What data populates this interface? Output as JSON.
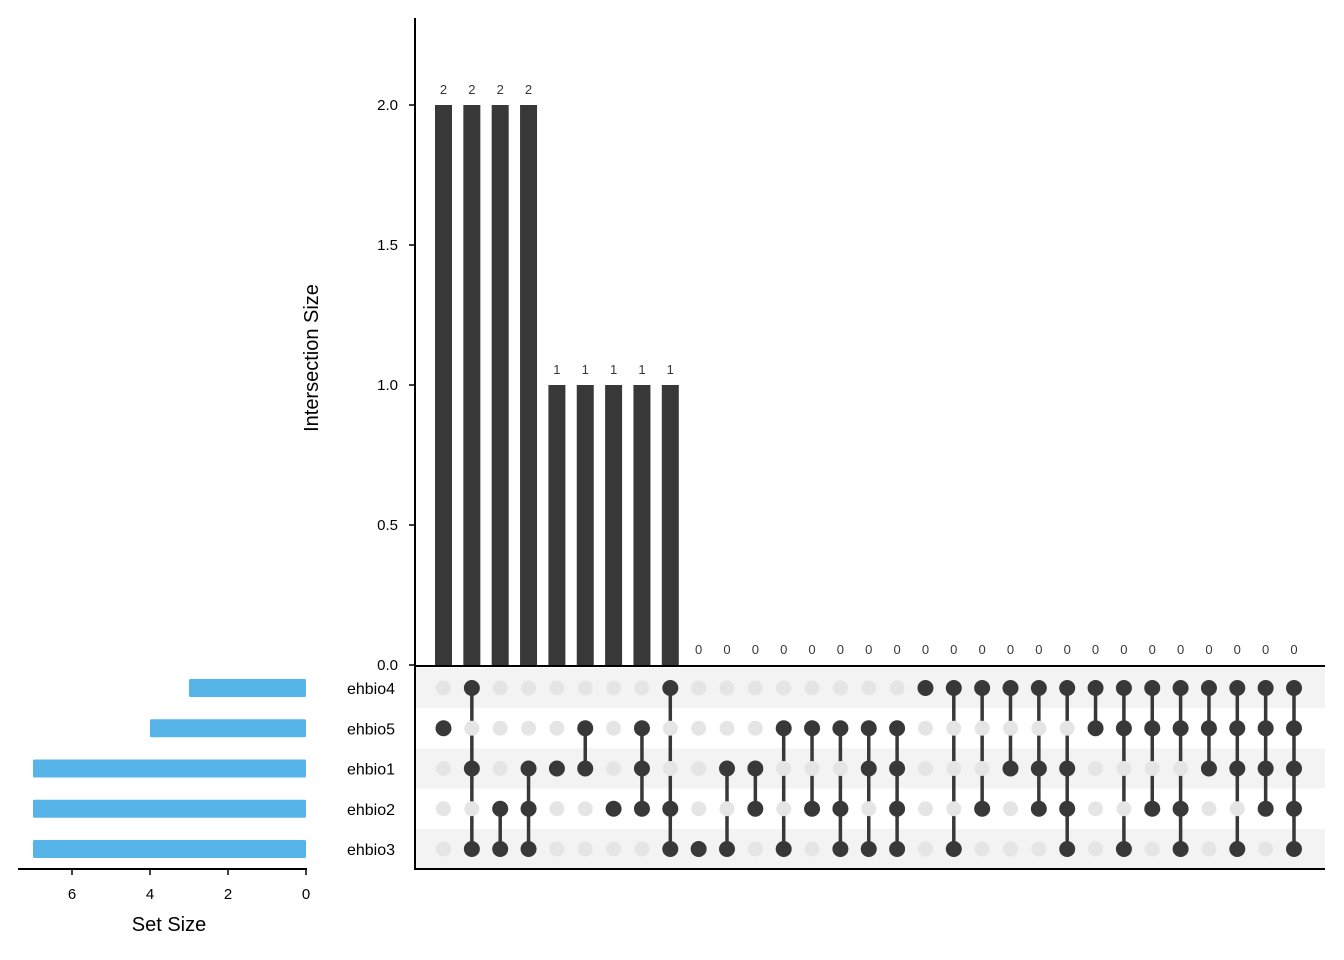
{
  "chart_data": {
    "type": "upset",
    "intersection_bars": {
      "ylabel": "Intersection Size",
      "ylim": [
        0,
        2.3
      ],
      "yticks": [
        "0.0",
        "0.5",
        "1.0",
        "1.5",
        "2.0"
      ],
      "values": [
        2,
        2,
        2,
        2,
        1,
        1,
        1,
        1,
        1,
        0,
        0,
        0,
        0,
        0,
        0,
        0,
        0,
        0,
        0,
        0,
        0,
        0,
        0,
        0,
        0,
        0,
        0,
        0,
        0,
        0,
        0
      ],
      "value_labels": [
        "2",
        "2",
        "2",
        "2",
        "1",
        "1",
        "1",
        "1",
        "1",
        "0",
        "0",
        "0",
        "0",
        "0",
        "0",
        "0",
        "0",
        "0",
        "0",
        "0",
        "0",
        "0",
        "0",
        "0",
        "0",
        "0",
        "0",
        "0",
        "0",
        "0",
        "0"
      ],
      "bar_color": "#383838"
    },
    "sets": {
      "names": [
        "ehbio4",
        "ehbio5",
        "ehbio1",
        "ehbio2",
        "ehbio3"
      ],
      "sizes": [
        3,
        4,
        7,
        7,
        7
      ],
      "xlabel": "Set Size",
      "xticks": [
        "6",
        "4",
        "2",
        "0"
      ],
      "bar_color": "#56b4e9"
    },
    "matrix": {
      "active_color": "#383838",
      "inactive_color": "#e5e5e5",
      "stripe_color": "#f3f3f3",
      "columns": [
        [
          "ehbio5"
        ],
        [
          "ehbio4",
          "ehbio1",
          "ehbio3"
        ],
        [
          "ehbio2",
          "ehbio3"
        ],
        [
          "ehbio1",
          "ehbio2",
          "ehbio3"
        ],
        [
          "ehbio1"
        ],
        [
          "ehbio5",
          "ehbio1"
        ],
        [
          "ehbio2"
        ],
        [
          "ehbio5",
          "ehbio1",
          "ehbio2"
        ],
        [
          "ehbio4",
          "ehbio2",
          "ehbio3"
        ],
        [
          "ehbio3"
        ],
        [
          "ehbio1",
          "ehbio3"
        ],
        [
          "ehbio1",
          "ehbio2"
        ],
        [
          "ehbio5",
          "ehbio3"
        ],
        [
          "ehbio5",
          "ehbio2"
        ],
        [
          "ehbio5",
          "ehbio2",
          "ehbio3"
        ],
        [
          "ehbio5",
          "ehbio1",
          "ehbio3"
        ],
        [
          "ehbio5",
          "ehbio1",
          "ehbio2",
          "ehbio3"
        ],
        [
          "ehbio4"
        ],
        [
          "ehbio4",
          "ehbio3"
        ],
        [
          "ehbio4",
          "ehbio2"
        ],
        [
          "ehbio4",
          "ehbio1"
        ],
        [
          "ehbio4",
          "ehbio1",
          "ehbio2"
        ],
        [
          "ehbio4",
          "ehbio1",
          "ehbio2",
          "ehbio3"
        ],
        [
          "ehbio4",
          "ehbio5"
        ],
        [
          "ehbio4",
          "ehbio5",
          "ehbio3"
        ],
        [
          "ehbio4",
          "ehbio5",
          "ehbio2"
        ],
        [
          "ehbio4",
          "ehbio5",
          "ehbio2",
          "ehbio3"
        ],
        [
          "ehbio4",
          "ehbio5",
          "ehbio1"
        ],
        [
          "ehbio4",
          "ehbio5",
          "ehbio1",
          "ehbio3"
        ],
        [
          "ehbio4",
          "ehbio5",
          "ehbio1",
          "ehbio2"
        ],
        [
          "ehbio4",
          "ehbio5",
          "ehbio1",
          "ehbio2",
          "ehbio3"
        ]
      ]
    }
  }
}
